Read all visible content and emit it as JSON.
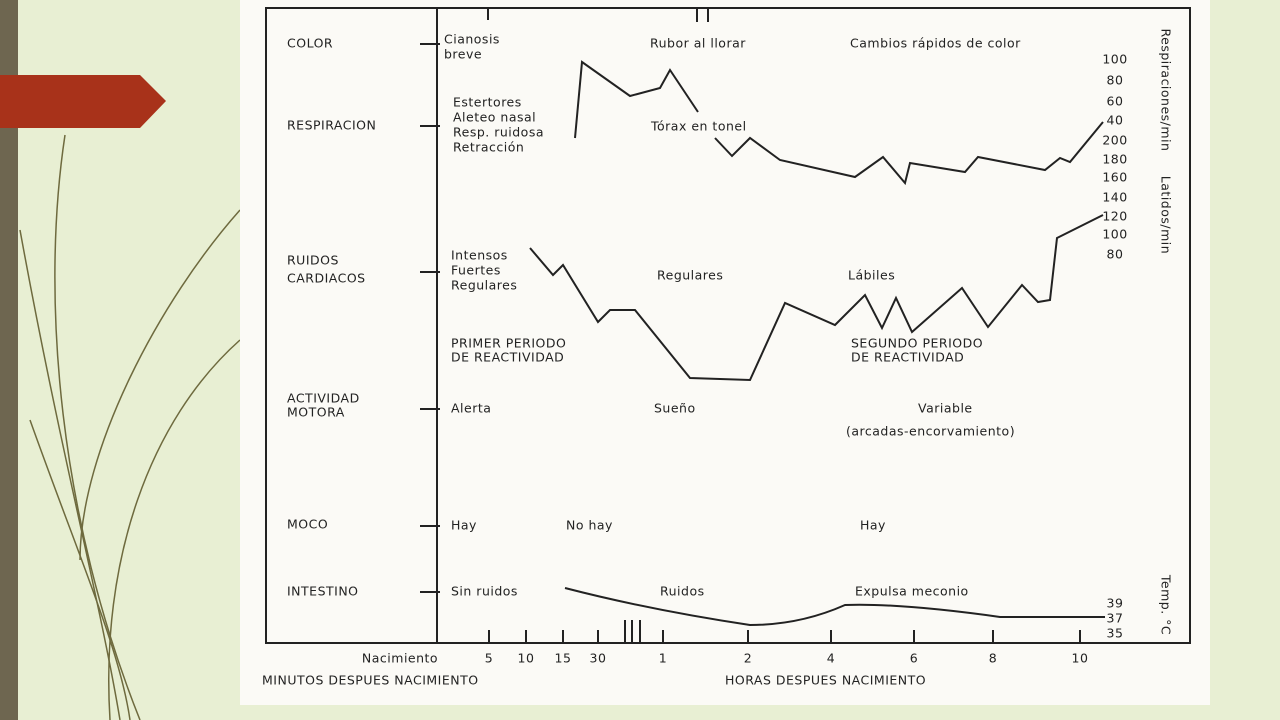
{
  "rows": [
    "COLOR",
    "RESPIRACION",
    "RUIDOS",
    "CARDIACOS",
    "ACTIVIDAD",
    "MOTORA",
    "MOCO",
    "INTESTINO"
  ],
  "annotations": [
    "Cianosis",
    "breve",
    "Rubor al llorar",
    "Cambios rápidos de color",
    "Estertores",
    "Aleteo nasal",
    "Resp. ruidosa",
    "Retracción",
    "Tórax en tonel",
    "Intensos",
    "Fuertes",
    "Regulares",
    "Regulares",
    "Lábiles",
    "PRIMER PERIODO",
    "DE REACTIVIDAD",
    "SEGUNDO PERIODO",
    "DE REACTIVIDAD",
    "Alerta",
    "Sueño",
    "Variable",
    "(arcadas-encorvamiento)",
    "Hay",
    "No hay",
    "Hay",
    "Sin ruidos",
    "Ruidos",
    "Expulsa meconio"
  ],
  "scales": [
    {
      "label": "Respiraciones/min",
      "ticks": [
        100,
        80,
        60,
        40
      ]
    },
    {
      "label": "Latidos/min",
      "ticks": [
        200,
        180,
        160,
        140,
        120,
        100,
        80
      ]
    },
    {
      "label": "Temp. °C",
      "ticks": [
        39,
        37,
        35
      ]
    }
  ],
  "x_axis": {
    "ticks": [
      "Nacimiento",
      "5",
      "10",
      "15",
      "30",
      "1",
      "2",
      "4",
      "6",
      "8",
      "10"
    ],
    "minutes_label": "MINUTOS DESPUES NACIMIENTO",
    "hours_label": "HORAS DESPUES NACIMIENTO"
  }
}
